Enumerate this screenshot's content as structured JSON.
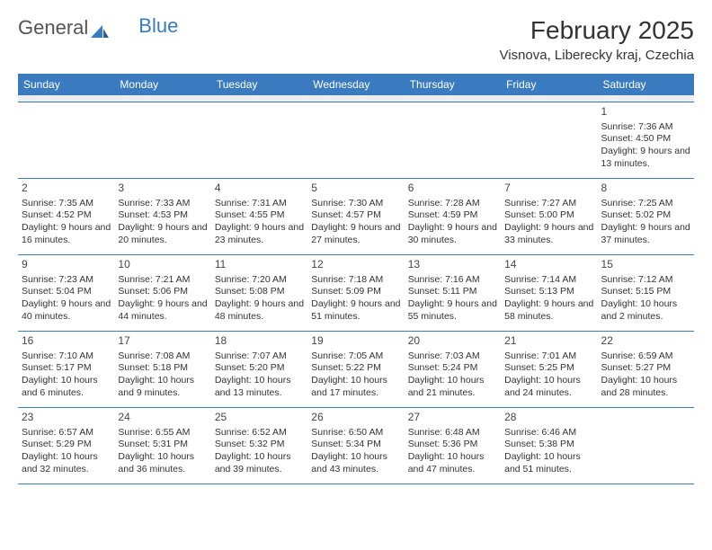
{
  "logo": {
    "text1": "General",
    "text2": "Blue"
  },
  "title": "February 2025",
  "location": "Visnova, Liberecky kraj, Czechia",
  "colors": {
    "header_bg": "#3a7bbf",
    "header_text": "#ffffff",
    "rule": "#3a7bbf",
    "spacer": "#eeeeee",
    "body_text": "#333333",
    "logo_gray": "#555555",
    "logo_blue": "#3a7bbf",
    "page_bg": "#ffffff"
  },
  "typography": {
    "title_fontsize": 28,
    "location_fontsize": 15,
    "dayhead_fontsize": 12,
    "daynum_fontsize": 12,
    "cell_fontsize": 10.5,
    "logo_fontsize": 22,
    "font_family": "Arial"
  },
  "day_headers": [
    "Sunday",
    "Monday",
    "Tuesday",
    "Wednesday",
    "Thursday",
    "Friday",
    "Saturday"
  ],
  "weeks": [
    [
      {
        "n": "",
        "lines": []
      },
      {
        "n": "",
        "lines": []
      },
      {
        "n": "",
        "lines": []
      },
      {
        "n": "",
        "lines": []
      },
      {
        "n": "",
        "lines": []
      },
      {
        "n": "",
        "lines": []
      },
      {
        "n": "1",
        "lines": [
          "Sunrise: 7:36 AM",
          "Sunset: 4:50 PM",
          "Daylight: 9 hours and 13 minutes."
        ]
      }
    ],
    [
      {
        "n": "2",
        "lines": [
          "Sunrise: 7:35 AM",
          "Sunset: 4:52 PM",
          "Daylight: 9 hours and 16 minutes."
        ]
      },
      {
        "n": "3",
        "lines": [
          "Sunrise: 7:33 AM",
          "Sunset: 4:53 PM",
          "Daylight: 9 hours and 20 minutes."
        ]
      },
      {
        "n": "4",
        "lines": [
          "Sunrise: 7:31 AM",
          "Sunset: 4:55 PM",
          "Daylight: 9 hours and 23 minutes."
        ]
      },
      {
        "n": "5",
        "lines": [
          "Sunrise: 7:30 AM",
          "Sunset: 4:57 PM",
          "Daylight: 9 hours and 27 minutes."
        ]
      },
      {
        "n": "6",
        "lines": [
          "Sunrise: 7:28 AM",
          "Sunset: 4:59 PM",
          "Daylight: 9 hours and 30 minutes."
        ]
      },
      {
        "n": "7",
        "lines": [
          "Sunrise: 7:27 AM",
          "Sunset: 5:00 PM",
          "Daylight: 9 hours and 33 minutes."
        ]
      },
      {
        "n": "8",
        "lines": [
          "Sunrise: 7:25 AM",
          "Sunset: 5:02 PM",
          "Daylight: 9 hours and 37 minutes."
        ]
      }
    ],
    [
      {
        "n": "9",
        "lines": [
          "Sunrise: 7:23 AM",
          "Sunset: 5:04 PM",
          "Daylight: 9 hours and 40 minutes."
        ]
      },
      {
        "n": "10",
        "lines": [
          "Sunrise: 7:21 AM",
          "Sunset: 5:06 PM",
          "Daylight: 9 hours and 44 minutes."
        ]
      },
      {
        "n": "11",
        "lines": [
          "Sunrise: 7:20 AM",
          "Sunset: 5:08 PM",
          "Daylight: 9 hours and 48 minutes."
        ]
      },
      {
        "n": "12",
        "lines": [
          "Sunrise: 7:18 AM",
          "Sunset: 5:09 PM",
          "Daylight: 9 hours and 51 minutes."
        ]
      },
      {
        "n": "13",
        "lines": [
          "Sunrise: 7:16 AM",
          "Sunset: 5:11 PM",
          "Daylight: 9 hours and 55 minutes."
        ]
      },
      {
        "n": "14",
        "lines": [
          "Sunrise: 7:14 AM",
          "Sunset: 5:13 PM",
          "Daylight: 9 hours and 58 minutes."
        ]
      },
      {
        "n": "15",
        "lines": [
          "Sunrise: 7:12 AM",
          "Sunset: 5:15 PM",
          "Daylight: 10 hours and 2 minutes."
        ]
      }
    ],
    [
      {
        "n": "16",
        "lines": [
          "Sunrise: 7:10 AM",
          "Sunset: 5:17 PM",
          "Daylight: 10 hours and 6 minutes."
        ]
      },
      {
        "n": "17",
        "lines": [
          "Sunrise: 7:08 AM",
          "Sunset: 5:18 PM",
          "Daylight: 10 hours and 9 minutes."
        ]
      },
      {
        "n": "18",
        "lines": [
          "Sunrise: 7:07 AM",
          "Sunset: 5:20 PM",
          "Daylight: 10 hours and 13 minutes."
        ]
      },
      {
        "n": "19",
        "lines": [
          "Sunrise: 7:05 AM",
          "Sunset: 5:22 PM",
          "Daylight: 10 hours and 17 minutes."
        ]
      },
      {
        "n": "20",
        "lines": [
          "Sunrise: 7:03 AM",
          "Sunset: 5:24 PM",
          "Daylight: 10 hours and 21 minutes."
        ]
      },
      {
        "n": "21",
        "lines": [
          "Sunrise: 7:01 AM",
          "Sunset: 5:25 PM",
          "Daylight: 10 hours and 24 minutes."
        ]
      },
      {
        "n": "22",
        "lines": [
          "Sunrise: 6:59 AM",
          "Sunset: 5:27 PM",
          "Daylight: 10 hours and 28 minutes."
        ]
      }
    ],
    [
      {
        "n": "23",
        "lines": [
          "Sunrise: 6:57 AM",
          "Sunset: 5:29 PM",
          "Daylight: 10 hours and 32 minutes."
        ]
      },
      {
        "n": "24",
        "lines": [
          "Sunrise: 6:55 AM",
          "Sunset: 5:31 PM",
          "Daylight: 10 hours and 36 minutes."
        ]
      },
      {
        "n": "25",
        "lines": [
          "Sunrise: 6:52 AM",
          "Sunset: 5:32 PM",
          "Daylight: 10 hours and 39 minutes."
        ]
      },
      {
        "n": "26",
        "lines": [
          "Sunrise: 6:50 AM",
          "Sunset: 5:34 PM",
          "Daylight: 10 hours and 43 minutes."
        ]
      },
      {
        "n": "27",
        "lines": [
          "Sunrise: 6:48 AM",
          "Sunset: 5:36 PM",
          "Daylight: 10 hours and 47 minutes."
        ]
      },
      {
        "n": "28",
        "lines": [
          "Sunrise: 6:46 AM",
          "Sunset: 5:38 PM",
          "Daylight: 10 hours and 51 minutes."
        ]
      },
      {
        "n": "",
        "lines": []
      }
    ]
  ]
}
